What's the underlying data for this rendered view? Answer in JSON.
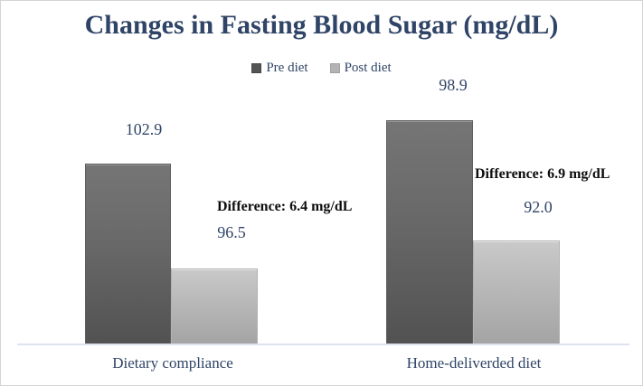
{
  "title": "Changes in Fasting Blood Sugar (mg/dL)",
  "legend": {
    "pre_label": "Pre diet",
    "post_label": "Post diet"
  },
  "groups": [
    {
      "category": "Dietary compliance",
      "pre_value": "102.9",
      "post_value": "96.5",
      "difference": "Difference: 6.4 mg/dL"
    },
    {
      "category": "Home-deliverded diet",
      "pre_value": "98.9",
      "post_value": "92.0",
      "difference": "Difference: 6.9 mg/dL"
    }
  ],
  "colors": {
    "heading_text": "#2f4466",
    "pre_bar": "#636363",
    "post_bar": "#b5b5b5",
    "difference_text": "#0d0d0d",
    "axis_line": "#dde3f0",
    "frame_border": "#d4d4d4"
  },
  "chart_data": {
    "type": "bar",
    "title": "Changes in Fasting Blood Sugar (mg/dL)",
    "categories": [
      "Dietary compliance",
      "Home-deliverded diet"
    ],
    "series": [
      {
        "name": "Pre diet",
        "values": [
          102.9,
          98.9
        ],
        "color": "#636363"
      },
      {
        "name": "Post diet",
        "values": [
          96.5,
          92.0
        ],
        "color": "#b5b5b5"
      }
    ],
    "annotations": [
      {
        "text": "Difference: 6.4 mg/dL",
        "group": "Dietary compliance"
      },
      {
        "text": "Difference: 6.9 mg/dL",
        "group": "Home-deliverded diet"
      }
    ],
    "legend_position": "top-center",
    "grid": false,
    "axes_visible": false,
    "value_labels_shown": true
  }
}
